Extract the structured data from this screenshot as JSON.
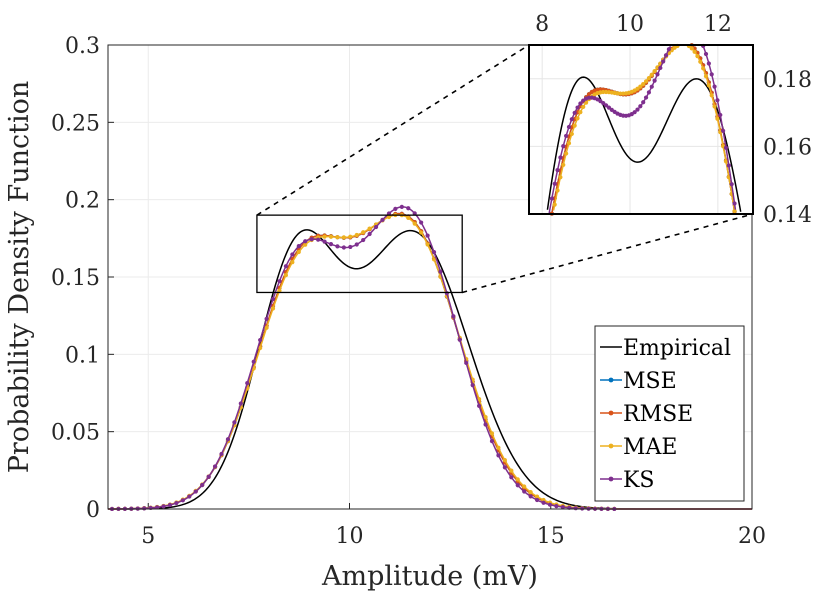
{
  "chart_data": {
    "type": "line",
    "xlabel": "Amplitude (mV)",
    "ylabel": "Probability Density Function",
    "xlim": [
      4,
      20
    ],
    "ylim": [
      0,
      0.3
    ],
    "x_ticks": [
      "5",
      "10",
      "15",
      "20"
    ],
    "y_ticks": [
      "0",
      "0.05",
      "0.1",
      "0.15",
      "0.2",
      "0.25",
      "0.3"
    ],
    "grid": true,
    "legend_position": "bottom-right",
    "legend": [
      "Empirical",
      "MSE",
      "RMSE",
      "MAE",
      "KS"
    ],
    "series": [
      {
        "name": "Empirical",
        "color": "#000000",
        "marker": "none",
        "components": [
          {
            "w": 0.4,
            "mu": 8.7,
            "sigma": 1.0
          },
          {
            "w": 0.6,
            "mu": 11.6,
            "sigma": 1.35
          }
        ]
      },
      {
        "name": "MSE",
        "color": "#0072BD",
        "marker": "dot",
        "components": [
          {
            "w": 0.44,
            "mu": 8.8,
            "sigma": 1.15
          },
          {
            "w": 0.56,
            "mu": 11.5,
            "sigma": 1.25
          }
        ]
      },
      {
        "name": "RMSE",
        "color": "#D95319",
        "marker": "dot",
        "components": [
          {
            "w": 0.44,
            "mu": 8.8,
            "sigma": 1.15
          },
          {
            "w": 0.56,
            "mu": 11.5,
            "sigma": 1.25
          }
        ]
      },
      {
        "name": "MAE",
        "color": "#EDB120",
        "marker": "dot",
        "components": [
          {
            "w": 0.435,
            "mu": 8.8,
            "sigma": 1.16
          },
          {
            "w": 0.565,
            "mu": 11.5,
            "sigma": 1.27
          }
        ]
      },
      {
        "name": "KS",
        "color": "#7E2F8E",
        "marker": "dot",
        "components": [
          {
            "w": 0.44,
            "mu": 8.75,
            "sigma": 1.12
          },
          {
            "w": 0.56,
            "mu": 11.5,
            "sigma": 1.2
          }
        ]
      }
    ],
    "inset": {
      "xlim": [
        7.7,
        12.8
      ],
      "ylim": [
        0.14,
        0.19
      ],
      "x_ticks": [
        "8",
        "10",
        "12"
      ],
      "y_ticks": [
        "0.14",
        "0.16",
        "0.18"
      ]
    }
  }
}
